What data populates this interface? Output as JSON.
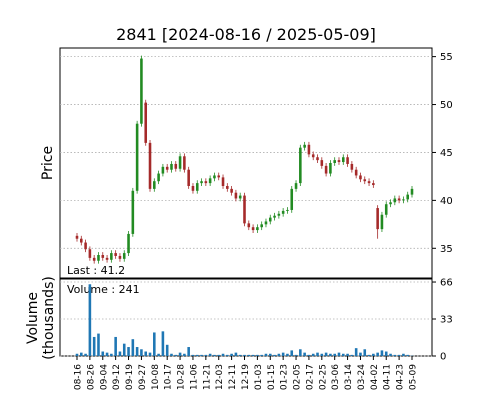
{
  "chart_data": {
    "type": "candlestick",
    "title": "2841   [2024-08-16 / 2025-05-09]",
    "ylabel": "Price",
    "categories": [
      "08-16",
      null,
      null,
      "08-26",
      null,
      null,
      "09-04",
      null,
      null,
      "09-12",
      null,
      null,
      "09-19",
      null,
      null,
      "09-27",
      null,
      null,
      "10-08",
      null,
      null,
      "10-17",
      null,
      null,
      "10-28",
      null,
      null,
      "11-06",
      null,
      null,
      "11-21",
      null,
      null,
      "12-03",
      null,
      null,
      "12-11",
      null,
      null,
      "12-19",
      null,
      null,
      "01-03",
      null,
      null,
      "01-15",
      null,
      null,
      "01-23",
      null,
      null,
      "02-05",
      null,
      null,
      "02-17",
      null,
      null,
      "02-25",
      null,
      null,
      "03-06",
      null,
      null,
      "03-14",
      null,
      null,
      "03-24",
      null,
      null,
      "04-02",
      null,
      null,
      "04-11",
      null,
      null,
      "04-23",
      null,
      null,
      "05-09"
    ],
    "open": [
      36.3,
      36.0,
      35.6,
      34.9,
      34.0,
      33.7,
      34.3,
      34.0,
      33.8,
      34.5,
      34.2,
      33.9,
      34.5,
      36.5,
      41.0,
      48.0,
      50.2,
      46.0,
      41.2,
      42.0,
      42.8,
      43.5,
      43.2,
      43.8,
      43.3,
      44.6,
      43.2,
      41.5,
      41.0,
      41.8,
      42.0,
      41.8,
      42.3,
      42.6,
      42.4,
      41.5,
      41.2,
      40.8,
      40.2,
      40.5,
      37.6,
      37.2,
      36.9,
      37.2,
      37.5,
      37.8,
      38.2,
      38.4,
      38.6,
      38.9,
      39.0,
      41.2,
      41.8,
      45.5,
      45.8,
      44.8,
      44.5,
      44.2,
      43.6,
      42.8,
      43.9,
      44.2,
      44.0,
      44.5,
      43.8,
      43.2,
      42.6,
      42.2,
      42.0,
      41.8,
      39.2,
      37.0,
      38.5,
      39.6,
      39.8,
      40.2,
      40.0,
      40.1,
      40.6
    ],
    "high": [
      36.6,
      36.3,
      35.9,
      35.2,
      34.3,
      34.6,
      34.6,
      34.3,
      34.8,
      34.8,
      34.5,
      34.8,
      36.8,
      41.3,
      48.3,
      55.1,
      50.5,
      46.3,
      42.3,
      43.1,
      43.8,
      43.8,
      44.1,
      44.1,
      44.9,
      44.9,
      43.5,
      41.8,
      42.1,
      42.3,
      42.3,
      42.6,
      42.9,
      42.9,
      42.7,
      41.8,
      41.5,
      41.1,
      40.8,
      40.8,
      37.9,
      37.5,
      37.5,
      37.8,
      38.1,
      38.5,
      38.7,
      38.9,
      39.2,
      39.3,
      41.5,
      42.1,
      45.8,
      46.1,
      46.1,
      45.1,
      44.8,
      44.5,
      43.9,
      44.2,
      44.5,
      44.5,
      44.8,
      44.8,
      44.1,
      43.5,
      42.9,
      42.5,
      42.3,
      42.1,
      39.5,
      38.8,
      39.9,
      40.1,
      40.5,
      40.5,
      40.4,
      40.9,
      41.5
    ],
    "low": [
      35.7,
      35.3,
      34.6,
      33.7,
      33.4,
      33.4,
      33.7,
      33.5,
      33.5,
      33.9,
      33.6,
      33.6,
      34.2,
      36.2,
      40.7,
      47.7,
      45.7,
      40.9,
      40.9,
      41.7,
      42.5,
      42.9,
      42.9,
      43.0,
      43.0,
      42.9,
      41.2,
      40.7,
      40.7,
      41.5,
      41.5,
      41.5,
      42.0,
      42.1,
      41.2,
      40.9,
      40.5,
      39.9,
      39.9,
      37.3,
      36.9,
      36.6,
      36.6,
      36.9,
      37.2,
      37.5,
      37.9,
      38.1,
      38.3,
      38.6,
      38.7,
      40.9,
      41.5,
      45.2,
      44.5,
      44.2,
      43.9,
      43.3,
      42.5,
      42.5,
      43.6,
      43.7,
      43.7,
      43.5,
      42.9,
      42.3,
      41.9,
      41.7,
      41.5,
      41.3,
      36.0,
      36.7,
      38.2,
      39.3,
      39.5,
      39.7,
      39.7,
      39.8,
      40.3
    ],
    "close": [
      36.0,
      35.6,
      34.9,
      34.0,
      33.7,
      34.3,
      34.0,
      33.8,
      34.5,
      34.2,
      33.9,
      34.5,
      36.5,
      41.0,
      48.0,
      54.8,
      46.0,
      41.2,
      42.0,
      42.8,
      43.5,
      43.2,
      43.8,
      43.3,
      44.6,
      43.2,
      41.5,
      41.0,
      41.8,
      42.0,
      41.8,
      42.3,
      42.6,
      42.4,
      41.5,
      41.2,
      40.8,
      40.2,
      40.5,
      37.6,
      37.2,
      36.9,
      37.2,
      37.5,
      37.8,
      38.2,
      38.4,
      38.6,
      38.9,
      39.0,
      41.2,
      41.8,
      45.5,
      45.8,
      44.8,
      44.5,
      44.2,
      43.6,
      42.8,
      43.9,
      44.2,
      44.0,
      44.5,
      43.8,
      43.2,
      42.6,
      42.2,
      42.0,
      41.8,
      41.6,
      37.0,
      38.5,
      39.6,
      39.8,
      40.2,
      40.0,
      40.1,
      40.6,
      41.2
    ],
    "up_color": "#228b22",
    "down_color": "#a52a2a",
    "ylim": [
      31.9,
      55.9
    ],
    "yticks": [
      35,
      40,
      45,
      50,
      55
    ],
    "grid": true,
    "last_label": "Last : 41.2",
    "volume": {
      "ylabel": [
        "Volume",
        "(thousands)"
      ],
      "color": "#1f77b4",
      "values": [
        2,
        3,
        2,
        64,
        17,
        20,
        4,
        3,
        2,
        17,
        4,
        11,
        8,
        15,
        8,
        6,
        4,
        3,
        21,
        2,
        22,
        10,
        2,
        1,
        3,
        2,
        8,
        1,
        1,
        1,
        1,
        2,
        1,
        1,
        2,
        1,
        2,
        3,
        1,
        1,
        1,
        1,
        1,
        1,
        2,
        2,
        1,
        2,
        3,
        2,
        5,
        1,
        6,
        3,
        1,
        2,
        3,
        2,
        3,
        2,
        2,
        3,
        2,
        2,
        1,
        7,
        3,
        6,
        1,
        2,
        3,
        5,
        4,
        2,
        1,
        1,
        2,
        1,
        0.241
      ],
      "ylim": [
        0,
        68.7
      ],
      "yticks": [
        0,
        33,
        66
      ],
      "last_label": "Volume : 241"
    }
  }
}
